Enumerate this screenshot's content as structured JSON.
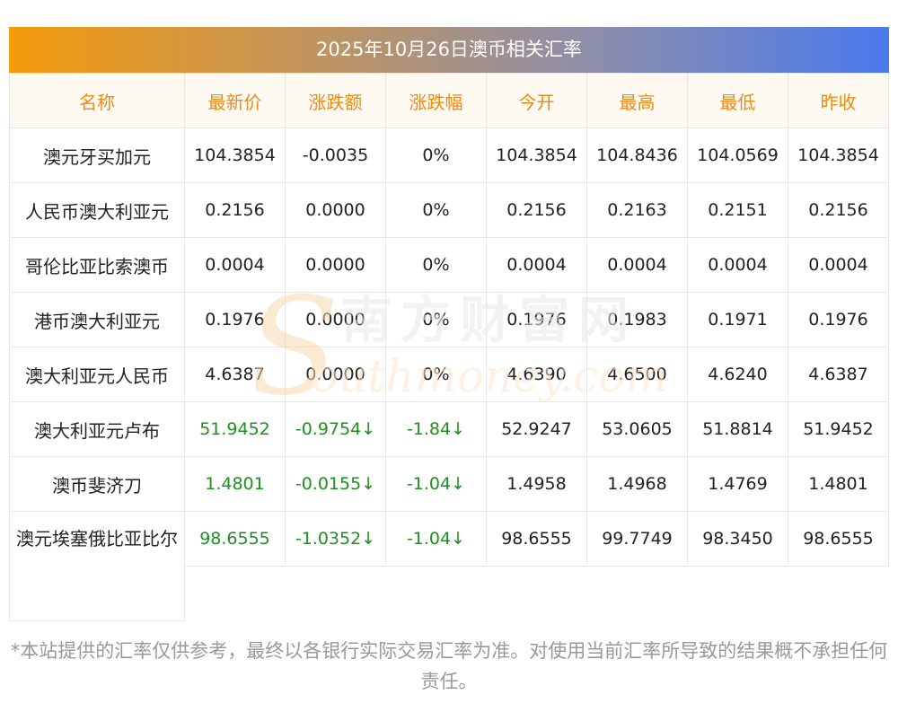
{
  "title": "2025年10月26日澳币相关汇率",
  "columns": [
    "名称",
    "最新价",
    "涨跌额",
    "涨跌幅",
    "今开",
    "最高",
    "最低",
    "昨收"
  ],
  "rows": [
    {
      "name": "澳元牙买加元",
      "latest": "104.3854",
      "change": "-0.0035",
      "pct": "0%",
      "open": "104.3854",
      "high": "104.8436",
      "low": "104.0569",
      "prev": "104.3854",
      "down": false
    },
    {
      "name": "人民币澳大利亚元",
      "latest": "0.2156",
      "change": "0.0000",
      "pct": "0%",
      "open": "0.2156",
      "high": "0.2163",
      "low": "0.2151",
      "prev": "0.2156",
      "down": false
    },
    {
      "name": "哥伦比亚比索澳币",
      "latest": "0.0004",
      "change": "0.0000",
      "pct": "0%",
      "open": "0.0004",
      "high": "0.0004",
      "low": "0.0004",
      "prev": "0.0004",
      "down": false
    },
    {
      "name": "港币澳大利亚元",
      "latest": "0.1976",
      "change": "0.0000",
      "pct": "0%",
      "open": "0.1976",
      "high": "0.1983",
      "low": "0.1971",
      "prev": "0.1976",
      "down": false
    },
    {
      "name": "澳大利亚元人民币",
      "latest": "4.6387",
      "change": "0.0000",
      "pct": "0%",
      "open": "4.6390",
      "high": "4.6500",
      "low": "4.6240",
      "prev": "4.6387",
      "down": false
    },
    {
      "name": "澳大利亚元卢布",
      "latest": "51.9452",
      "change": "-0.9754↓",
      "pct": "-1.84↓",
      "open": "52.9247",
      "high": "53.0605",
      "low": "51.8814",
      "prev": "51.9452",
      "down": true
    },
    {
      "name": "澳币斐济刀",
      "latest": "1.4801",
      "change": "-0.0155↓",
      "pct": "-1.04↓",
      "open": "1.4958",
      "high": "1.4968",
      "low": "1.4769",
      "prev": "1.4801",
      "down": true
    },
    {
      "name": "澳元埃塞俄比亚比尔",
      "latest": "98.6555",
      "change": "-1.0352↓",
      "pct": "-1.04↓",
      "open": "98.6555",
      "high": "99.7749",
      "low": "98.3450",
      "prev": "98.6555",
      "down": true
    }
  ],
  "watermark": {
    "cn": "南方财富网",
    "en": "outhmoney.com",
    "s_glyph": "S"
  },
  "footer": "*本站提供的汇率仅供参考，最终以各银行实际交易汇率为准。对使用当前汇率所导致的结果概不承担任何责任。",
  "colors": {
    "header_text": "#ef8a13",
    "header_bg": "#fef9f1",
    "down": "#1f8f1f",
    "gradient_start": "#f49a0a",
    "gradient_end": "#4a7aec"
  }
}
